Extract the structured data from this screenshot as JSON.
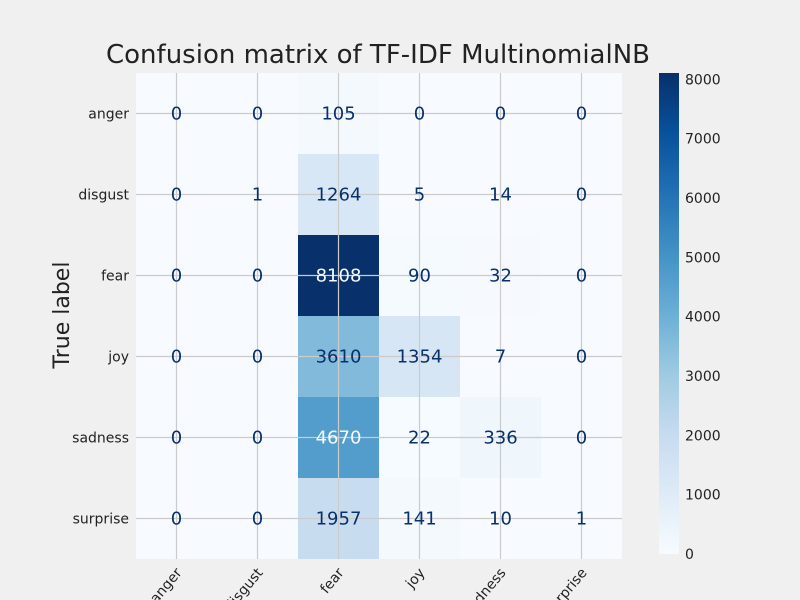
{
  "chart_data": {
    "type": "heatmap",
    "title": "Confusion matrix of TF-IDF MultinomialNB",
    "ylabel": "True label",
    "xlabel": "",
    "row_labels": [
      "anger",
      "disgust",
      "fear",
      "joy",
      "sadness",
      "surprise"
    ],
    "col_labels": [
      "anger",
      "disgust",
      "fear",
      "joy",
      "sadness",
      "surprise"
    ],
    "values": [
      [
        0,
        0,
        105,
        0,
        0,
        0
      ],
      [
        0,
        1,
        1264,
        5,
        14,
        0
      ],
      [
        0,
        0,
        8108,
        90,
        32,
        0
      ],
      [
        0,
        0,
        3610,
        1354,
        7,
        0
      ],
      [
        0,
        0,
        4670,
        22,
        336,
        0
      ],
      [
        0,
        0,
        1957,
        141,
        10,
        1
      ]
    ],
    "colormap": "Blues",
    "colorbar": {
      "range": [
        0,
        8108
      ],
      "ticks": [
        0,
        1000,
        2000,
        3000,
        4000,
        5000,
        6000,
        7000,
        8000
      ]
    },
    "grid": true,
    "colors": {
      "background": "#f0f0f0",
      "grid": "#cbcbcb",
      "text_dark": "#08306b",
      "text_light": "#f7fbff"
    }
  }
}
